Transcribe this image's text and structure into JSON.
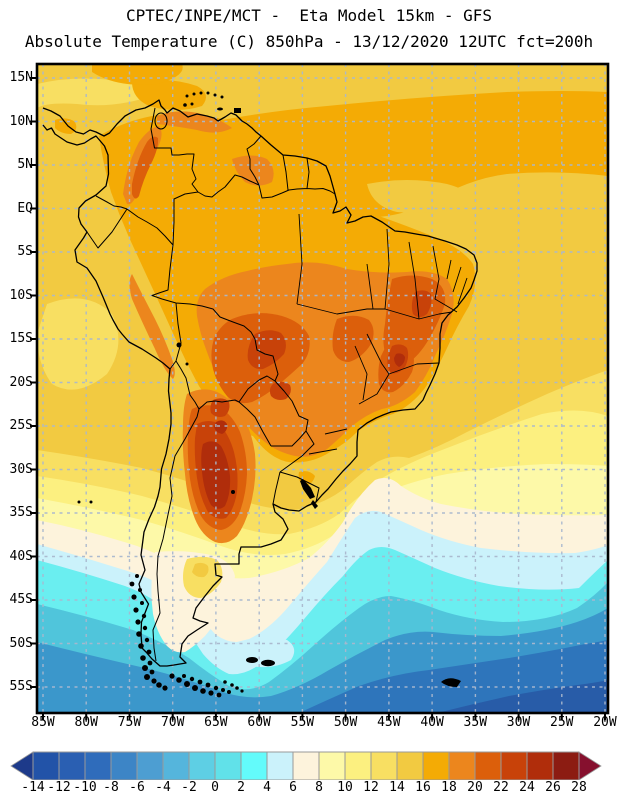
{
  "header": {
    "line1": "CPTEC/INPE/MCT -  Eta Model 15km - GFS",
    "line2": "Absolute Temperature (C) 850hPa - 13/12/2020 12UTC fct=200h"
  },
  "map": {
    "lat_labels": [
      "15N",
      "10N",
      "5N",
      "EQ",
      "5S",
      "10S",
      "15S",
      "20S",
      "25S",
      "30S",
      "35S",
      "40S",
      "45S",
      "50S",
      "55S"
    ],
    "lon_labels": [
      "85W",
      "80W",
      "75W",
      "70W",
      "65W",
      "60W",
      "55W",
      "50W",
      "45W",
      "40W",
      "35W",
      "30W",
      "25W",
      "20W"
    ]
  },
  "colorbar": {
    "tick_labels": [
      "-14",
      "-12",
      "-10",
      "-8",
      "-6",
      "-4",
      "-2",
      "0",
      "2",
      "4",
      "6",
      "8",
      "10",
      "12",
      "14",
      "16",
      "18",
      "20",
      "22",
      "24",
      "26",
      "28"
    ],
    "cell_colors": [
      "#2253a8",
      "#2a5fb2",
      "#2f6cbb",
      "#3d85c6",
      "#4d9ed2",
      "#55b5dc",
      "#5ecfe4",
      "#61e1e9",
      "#63fbfb",
      "#cbf2fb",
      "#fdf3dc",
      "#fdf9a8",
      "#fcf080",
      "#f8df62",
      "#f2ca41",
      "#f4ab05",
      "#ec861d",
      "#dc5f0b",
      "#c84209",
      "#b02d0b",
      "#8c1c12"
    ],
    "arrow_left_color": "#1d3a8a",
    "arrow_right_color": "#86102e"
  },
  "chart_data": {
    "type": "heatmap",
    "title": "CPTEC/INPE/MCT -  Eta Model 15km - GFS",
    "subtitle": "Absolute Temperature (C) 850hPa - 13/12/2020 12UTC fct=200h",
    "units": "C",
    "x_axis": {
      "ticks": [
        "85W",
        "80W",
        "75W",
        "70W",
        "65W",
        "60W",
        "55W",
        "50W",
        "45W",
        "40W",
        "35W",
        "30W",
        "25W",
        "20W"
      ],
      "range": [
        -85,
        -20
      ]
    },
    "y_axis": {
      "ticks": [
        "15N",
        "10N",
        "5N",
        "EQ",
        "5S",
        "10S",
        "15S",
        "20S",
        "25S",
        "30S",
        "35S",
        "40S",
        "45S",
        "50S",
        "55S"
      ],
      "range": [
        15,
        -55
      ]
    },
    "grid": "dashed 5-degree graticule",
    "legend_position": "bottom",
    "scale_values": [
      -14,
      -12,
      -10,
      -8,
      -6,
      -4,
      -2,
      0,
      2,
      4,
      6,
      8,
      10,
      12,
      14,
      16,
      18,
      20,
      22,
      24,
      26,
      28
    ],
    "scale_colors": [
      "#2253a8",
      "#2a5fb2",
      "#2f6cbb",
      "#3d85c6",
      "#4d9ed2",
      "#55b5dc",
      "#5ecfe4",
      "#61e1e9",
      "#63fbfb",
      "#cbf2fb",
      "#fdf3dc",
      "#fdf9a8",
      "#fcf080",
      "#f8df62",
      "#f2ca41",
      "#f4ab05",
      "#ec861d",
      "#dc5f0b",
      "#c84209",
      "#b02d0b",
      "#8c1c12"
    ],
    "field_summary": "Warm 14-26C over tropical South America; hottest core 22-26C over northwest Argentina/Bolivia/Paraguay and east Brazil; cold 6 to -8C band over the South Atlantic and Southeast Pacific south of 35S"
  }
}
